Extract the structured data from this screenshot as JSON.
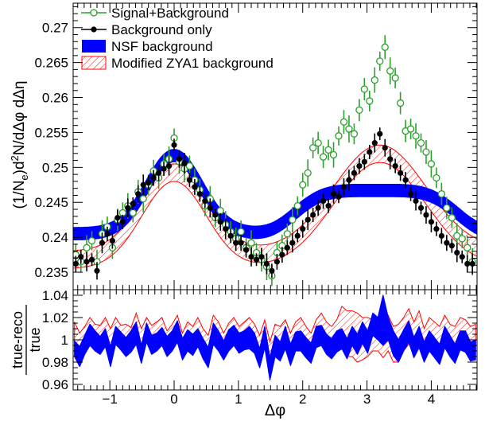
{
  "chart_data": [
    {
      "type": "scatter",
      "name": "main-panel",
      "ylabel": "(1/N_e)d²N/dΔφ dΔη",
      "xlim": [
        -1.571,
        4.712
      ],
      "ylim": [
        0.2325,
        0.2735
      ],
      "x_ticks": [
        -1,
        0,
        1,
        2,
        3,
        4
      ],
      "x_tick_labels": [
        "−1",
        "0",
        "1",
        "2",
        "3",
        "4"
      ],
      "y_ticks": [
        0.235,
        0.24,
        0.245,
        0.25,
        0.255,
        0.26,
        0.265,
        0.27
      ],
      "y_tick_labels": [
        "0.235",
        "0.24",
        "0.245",
        "0.25",
        "0.255",
        "0.26",
        "0.265",
        "0.27"
      ],
      "legend_position": "top-left",
      "legend": [
        {
          "label": "Signal+Background",
          "marker": "open-circle",
          "color": "#2ca02c"
        },
        {
          "label": "Background only",
          "marker": "filled-circle",
          "color": "#000000"
        },
        {
          "label": "NSF background",
          "marker": "filled-band",
          "color": "#0000ff"
        },
        {
          "label": "Modified ZYA1 background",
          "marker": "hatched-band",
          "color": "#ff0000"
        }
      ],
      "curve_models": {
        "nsf": {
          "base": 0.2405,
          "near_amp": 0.0112,
          "near_width": 0.42,
          "away_level": 0.0062,
          "away_center": 3.14,
          "away_width": 1.15,
          "band_halfwidth": 0.0007
        },
        "zya1_band": {
          "base": 0.2355,
          "near_amp": 0.0125,
          "near_width": 0.5,
          "away_amp": 0.0152,
          "away_center": 3.2,
          "away_width": 0.72,
          "band_height": 0.0025
        }
      },
      "series": [
        {
          "name": "Signal+Background",
          "color": "#2ca02c",
          "x": [
            -1.53,
            -1.45,
            -1.36,
            -1.28,
            -1.2,
            -1.12,
            -1.04,
            -0.96,
            -0.88,
            -0.8,
            -0.72,
            -0.64,
            -0.56,
            -0.48,
            -0.4,
            -0.32,
            -0.24,
            -0.16,
            -0.08,
            0.0,
            0.08,
            0.16,
            0.24,
            0.32,
            0.4,
            0.48,
            0.56,
            0.64,
            0.72,
            0.8,
            0.88,
            0.96,
            1.04,
            1.12,
            1.2,
            1.28,
            1.36,
            1.44,
            1.52,
            1.6,
            1.68,
            1.76,
            1.84,
            1.92,
            2.0,
            2.08,
            2.16,
            2.24,
            2.32,
            2.4,
            2.48,
            2.56,
            2.64,
            2.72,
            2.8,
            2.88,
            2.96,
            3.04,
            3.12,
            3.2,
            3.28,
            3.36,
            3.44,
            3.52,
            3.6,
            3.68,
            3.76,
            3.84,
            3.92,
            4.0,
            4.08,
            4.16,
            4.24,
            4.32,
            4.4,
            4.48,
            4.56,
            4.64
          ],
          "y": [
            0.2375,
            0.2365,
            0.2385,
            0.2395,
            0.2365,
            0.2405,
            0.2415,
            0.2385,
            0.2425,
            0.2435,
            0.2445,
            0.2435,
            0.2465,
            0.2455,
            0.2475,
            0.2495,
            0.2485,
            0.2505,
            0.2512,
            0.2542,
            0.2508,
            0.2498,
            0.2502,
            0.2482,
            0.2468,
            0.2445,
            0.2455,
            0.2428,
            0.2438,
            0.2418,
            0.2408,
            0.2398,
            0.2408,
            0.2385,
            0.2392,
            0.2378,
            0.2368,
            0.2358,
            0.2345,
            0.2378,
            0.2388,
            0.2405,
            0.2425,
            0.2445,
            0.2475,
            0.2492,
            0.2528,
            0.2535,
            0.2515,
            0.2525,
            0.2518,
            0.2545,
            0.2565,
            0.2555,
            0.2548,
            0.2582,
            0.2612,
            0.2595,
            0.2625,
            0.2652,
            0.2672,
            0.2638,
            0.2628,
            0.2592,
            0.2552,
            0.2555,
            0.2545,
            0.2535,
            0.2522,
            0.2505,
            0.2485,
            0.2462,
            0.2442,
            0.2428,
            0.2402,
            0.2398,
            0.2385,
            0.2365
          ]
        },
        {
          "name": "Background only",
          "color": "#000000",
          "x": [
            -1.53,
            -1.45,
            -1.36,
            -1.28,
            -1.2,
            -1.12,
            -1.04,
            -0.96,
            -0.88,
            -0.8,
            -0.72,
            -0.64,
            -0.56,
            -0.48,
            -0.4,
            -0.32,
            -0.24,
            -0.16,
            -0.08,
            0.0,
            0.08,
            0.16,
            0.24,
            0.32,
            0.4,
            0.48,
            0.56,
            0.64,
            0.72,
            0.8,
            0.88,
            0.96,
            1.04,
            1.12,
            1.2,
            1.28,
            1.36,
            1.44,
            1.52,
            1.6,
            1.68,
            1.76,
            1.84,
            1.92,
            2.0,
            2.08,
            2.16,
            2.24,
            2.32,
            2.4,
            2.48,
            2.56,
            2.64,
            2.72,
            2.8,
            2.88,
            2.96,
            3.04,
            3.12,
            3.2,
            3.28,
            3.36,
            3.44,
            3.52,
            3.6,
            3.68,
            3.76,
            3.84,
            3.92,
            4.0,
            4.08,
            4.16,
            4.24,
            4.32,
            4.4,
            4.48,
            4.56,
            4.64
          ],
          "y": [
            0.2362,
            0.2372,
            0.2365,
            0.2368,
            0.2352,
            0.2392,
            0.2405,
            0.2395,
            0.2428,
            0.2422,
            0.2442,
            0.2448,
            0.2462,
            0.2475,
            0.2478,
            0.2485,
            0.2492,
            0.2498,
            0.2502,
            0.2532,
            0.2512,
            0.2506,
            0.2482,
            0.2472,
            0.2462,
            0.2452,
            0.2442,
            0.2432,
            0.2422,
            0.2412,
            0.2402,
            0.2392,
            0.2392,
            0.2382,
            0.2372,
            0.2368,
            0.2372,
            0.2362,
            0.2352,
            0.2365,
            0.2375,
            0.2385,
            0.2392,
            0.2402,
            0.2412,
            0.2425,
            0.2432,
            0.2442,
            0.2452,
            0.2445,
            0.2462,
            0.2458,
            0.2472,
            0.2482,
            0.2492,
            0.2502,
            0.2508,
            0.2522,
            0.2535,
            0.2548,
            0.2528,
            0.2512,
            0.2502,
            0.2492,
            0.2482,
            0.2462,
            0.2452,
            0.2442,
            0.2432,
            0.2422,
            0.2412,
            0.2402,
            0.2392,
            0.2388,
            0.2378,
            0.2372,
            0.2362,
            0.2362
          ]
        }
      ]
    },
    {
      "type": "area",
      "name": "ratio-panel",
      "ylabel_num": "true-reco",
      "ylabel_den": "true",
      "xlabel": "Δφ",
      "xlim": [
        -1.571,
        4.712
      ],
      "ylim": [
        0.955,
        1.045
      ],
      "x_ticks": [
        -1,
        0,
        1,
        2,
        3,
        4
      ],
      "x_tick_labels": [
        "−1",
        "0",
        "1",
        "2",
        "3",
        "4"
      ],
      "y_ticks": [
        0.96,
        0.98,
        1.0,
        1.02,
        1.04
      ],
      "y_tick_labels": [
        "0.96",
        "0.98",
        "1",
        "1.02",
        "1.04"
      ],
      "series": [
        {
          "name": "NSF background",
          "color": "#0000ff",
          "x": [
            -1.55,
            -1.47,
            -1.39,
            -1.31,
            -1.23,
            -1.15,
            -1.07,
            -0.99,
            -0.91,
            -0.83,
            -0.75,
            -0.67,
            -0.59,
            -0.51,
            -0.43,
            -0.35,
            -0.27,
            -0.19,
            -0.11,
            -0.03,
            0.05,
            0.13,
            0.21,
            0.29,
            0.37,
            0.45,
            0.53,
            0.61,
            0.69,
            0.77,
            0.85,
            0.93,
            1.01,
            1.09,
            1.17,
            1.25,
            1.33,
            1.41,
            1.49,
            1.57,
            1.65,
            1.73,
            1.81,
            1.89,
            1.97,
            2.05,
            2.13,
            2.21,
            2.29,
            2.37,
            2.45,
            2.53,
            2.61,
            2.69,
            2.77,
            2.85,
            2.93,
            3.01,
            3.09,
            3.17,
            3.25,
            3.33,
            3.41,
            3.49,
            3.57,
            3.65,
            3.73,
            3.81,
            3.89,
            3.97,
            4.05,
            4.13,
            4.21,
            4.29,
            4.37,
            4.45,
            4.53,
            4.61,
            4.69
          ],
          "lo": [
            0.985,
            0.976,
            0.987,
            0.995,
            0.99,
            0.987,
            0.994,
            0.976,
            0.996,
            0.991,
            0.985,
            0.989,
            0.996,
            0.979,
            0.998,
            0.987,
            0.99,
            0.995,
            0.985,
            0.99,
            0.998,
            0.982,
            0.99,
            0.986,
            0.994,
            0.983,
            0.975,
            0.996,
            0.99,
            0.982,
            0.99,
            0.995,
            0.988,
            0.991,
            0.992,
            0.988,
            0.975,
            0.993,
            0.964,
            0.985,
            0.981,
            0.992,
            0.977,
            0.99,
            0.99,
            0.984,
            0.979,
            0.993,
            0.995,
            0.987,
            0.983,
            0.989,
            0.992,
            0.983,
            0.995,
            0.987,
            0.997,
            0.988,
            1.004,
            1.0,
            0.995,
            1.0,
            0.986,
            0.98,
            0.99,
            0.998,
            0.984,
            0.993,
            0.98,
            0.99,
            0.984,
            0.978,
            0.993,
            0.985,
            0.979,
            0.991,
            0.989,
            0.981,
            0.982
          ],
          "hi": [
            0.999,
            0.994,
            1.004,
            1.014,
            1.008,
            1.003,
            1.01,
            0.994,
            1.012,
            1.007,
            1.002,
            1.008,
            1.016,
            0.995,
            1.015,
            1.004,
            1.006,
            1.011,
            1.003,
            1.008,
            1.017,
            1.001,
            1.009,
            1.005,
            1.01,
            1.001,
            0.993,
            1.015,
            1.008,
            0.999,
            1.009,
            1.013,
            1.006,
            1.008,
            1.012,
            1.006,
            0.992,
            1.012,
            0.984,
            1.004,
            0.998,
            1.012,
            0.996,
            1.007,
            1.008,
            1.002,
            0.997,
            1.012,
            1.013,
            1.005,
            1.001,
            1.008,
            1.01,
            1.001,
            1.012,
            1.005,
            1.016,
            1.008,
            1.024,
            1.02,
            1.04,
            1.02,
            1.008,
            1.0,
            1.009,
            1.017,
            1.002,
            1.012,
            0.998,
            1.008,
            1.002,
            0.996,
            1.012,
            1.004,
            0.996,
            1.008,
            1.008,
            0.998,
            1.0
          ]
        },
        {
          "name": "Modified ZYA1 background",
          "color": "#ff0000",
          "x": [
            -1.55,
            -1.47,
            -1.39,
            -1.31,
            -1.23,
            -1.15,
            -1.07,
            -0.99,
            -0.91,
            -0.83,
            -0.75,
            -0.67,
            -0.59,
            -0.51,
            -0.43,
            -0.35,
            -0.27,
            -0.19,
            -0.11,
            -0.03,
            0.05,
            0.13,
            0.21,
            0.29,
            0.37,
            0.45,
            0.53,
            0.61,
            0.69,
            0.77,
            0.85,
            0.93,
            1.01,
            1.09,
            1.17,
            1.25,
            1.33,
            1.41,
            1.49,
            1.57,
            1.65,
            1.73,
            1.81,
            1.89,
            1.97,
            2.05,
            2.13,
            2.21,
            2.29,
            2.37,
            2.45,
            2.53,
            2.61,
            2.69,
            2.77,
            2.85,
            2.93,
            3.01,
            3.09,
            3.17,
            3.25,
            3.33,
            3.41,
            3.49,
            3.57,
            3.65,
            3.73,
            3.81,
            3.89,
            3.97,
            4.05,
            4.13,
            4.21,
            4.29,
            4.37,
            4.45,
            4.53,
            4.61,
            4.69
          ],
          "lo": [
            0.998,
            0.988,
            0.998,
            1.0,
            0.995,
            0.996,
            1.002,
            0.992,
            1.003,
            0.996,
            0.999,
            0.996,
            1.005,
            0.993,
            1.004,
            0.994,
            0.998,
            1.002,
            0.99,
            0.997,
            1.006,
            0.99,
            0.998,
            0.993,
            1.003,
            0.994,
            0.985,
            1.006,
            0.997,
            0.988,
            0.998,
            1.004,
            0.997,
            1.0,
            1.0,
            0.998,
            0.987,
            0.999,
            0.978,
            0.996,
            0.995,
            1.0,
            0.988,
            0.998,
            1.0,
            0.995,
            0.99,
            1.002,
            1.005,
            0.996,
            0.99,
            0.998,
            1.0,
            0.985,
            0.985,
            0.98,
            0.982,
            0.985,
            0.99,
            0.99,
            0.984,
            0.99,
            0.98,
            0.98,
            0.99,
            0.996,
            0.992,
            1.0,
            0.988,
            0.996,
            0.992,
            0.986,
            0.998,
            0.99,
            0.988,
            0.995,
            0.994,
            0.99,
            0.99
          ],
          "hi": [
            1.016,
            1.006,
            1.012,
            1.02,
            1.014,
            1.013,
            1.02,
            1.01,
            1.02,
            1.013,
            1.014,
            1.011,
            1.024,
            1.01,
            1.02,
            1.013,
            1.016,
            1.02,
            1.008,
            1.014,
            1.022,
            1.006,
            1.016,
            1.012,
            1.02,
            1.01,
            1.004,
            1.022,
            1.016,
            1.006,
            1.015,
            1.02,
            1.012,
            1.016,
            1.02,
            1.014,
            1.004,
            1.018,
            0.998,
            1.014,
            1.012,
            1.018,
            1.006,
            1.016,
            1.02,
            1.012,
            1.006,
            1.018,
            1.024,
            1.016,
            1.012,
            1.018,
            1.03,
            1.026,
            1.026,
            1.024,
            1.02,
            1.02,
            1.018,
            1.016,
            1.03,
            1.022,
            1.012,
            1.014,
            1.02,
            1.028,
            1.016,
            1.026,
            1.01,
            1.02,
            1.016,
            1.012,
            1.022,
            1.014,
            1.012,
            1.02,
            1.018,
            1.012,
            1.014
          ]
        }
      ]
    }
  ]
}
